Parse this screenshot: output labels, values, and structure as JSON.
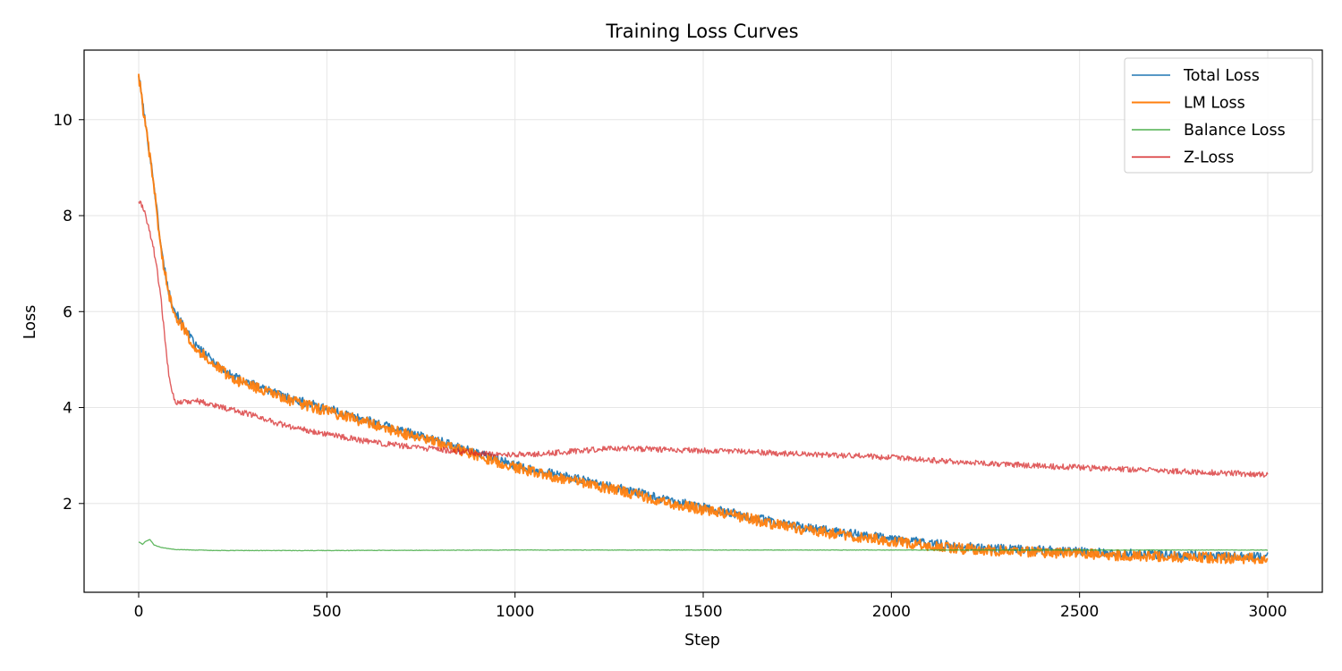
{
  "chart_data": {
    "type": "line",
    "title": "Training Loss Curves",
    "xlabel": "Step",
    "ylabel": "Loss",
    "xlim": [
      -145,
      3145
    ],
    "ylim": [
      0.15,
      11.45
    ],
    "xticks": [
      0,
      500,
      1000,
      1500,
      2000,
      2500,
      3000
    ],
    "yticks": [
      2,
      4,
      6,
      8,
      10
    ],
    "grid": true,
    "legend_position": "top-right",
    "series": [
      {
        "name": "Total Loss",
        "color": "#1f77b4",
        "x": [
          0,
          20,
          40,
          60,
          80,
          100,
          150,
          200,
          250,
          300,
          400,
          500,
          600,
          700,
          800,
          900,
          1000,
          1100,
          1200,
          1300,
          1400,
          1500,
          1600,
          1700,
          1800,
          1900,
          2000,
          2100,
          2200,
          2300,
          2400,
          2500,
          2600,
          2700,
          2800,
          2900,
          3000
        ],
        "values": [
          10.95,
          9.8,
          8.7,
          7.3,
          6.4,
          5.95,
          5.3,
          4.95,
          4.65,
          4.5,
          4.2,
          3.98,
          3.75,
          3.52,
          3.3,
          3.05,
          2.8,
          2.62,
          2.45,
          2.28,
          2.08,
          1.92,
          1.77,
          1.6,
          1.47,
          1.37,
          1.27,
          1.18,
          1.1,
          1.06,
          1.03,
          1.0,
          0.97,
          0.94,
          0.92,
          0.9,
          0.89
        ],
        "noise": 0.09,
        "linewidth": 1.6
      },
      {
        "name": "LM Loss",
        "color": "#ff7f0e",
        "x": [
          0,
          20,
          40,
          60,
          80,
          100,
          150,
          200,
          250,
          300,
          400,
          500,
          600,
          700,
          800,
          900,
          1000,
          1100,
          1200,
          1300,
          1400,
          1500,
          1600,
          1700,
          1800,
          1900,
          2000,
          2100,
          2200,
          2300,
          2400,
          2500,
          2600,
          2700,
          2800,
          2900,
          3000
        ],
        "values": [
          10.92,
          9.75,
          8.65,
          7.25,
          6.35,
          5.9,
          5.25,
          4.9,
          4.6,
          4.45,
          4.15,
          3.93,
          3.7,
          3.47,
          3.25,
          3.0,
          2.75,
          2.57,
          2.4,
          2.23,
          2.03,
          1.87,
          1.72,
          1.55,
          1.42,
          1.32,
          1.22,
          1.13,
          1.05,
          1.01,
          0.98,
          0.95,
          0.92,
          0.9,
          0.88,
          0.86,
          0.85
        ],
        "noise": 0.11,
        "linewidth": 2.0
      },
      {
        "name": "Balance Loss",
        "color": "#2ca02c",
        "x": [
          0,
          10,
          20,
          30,
          40,
          60,
          80,
          100,
          200,
          500,
          1000,
          1500,
          2000,
          2500,
          3000
        ],
        "values": [
          1.2,
          1.15,
          1.22,
          1.25,
          1.14,
          1.08,
          1.06,
          1.04,
          1.02,
          1.02,
          1.03,
          1.03,
          1.03,
          1.03,
          1.03
        ],
        "noise": 0.005,
        "linewidth": 1.3
      },
      {
        "name": "Z-Loss",
        "color": "#d62728",
        "x": [
          0,
          10,
          20,
          30,
          40,
          50,
          60,
          70,
          80,
          90,
          100,
          150,
          200,
          300,
          400,
          500,
          600,
          700,
          800,
          900,
          1000,
          1100,
          1200,
          1300,
          1400,
          1500,
          1600,
          1700,
          1800,
          1900,
          2000,
          2100,
          2200,
          2300,
          2400,
          2500,
          2600,
          2700,
          2800,
          2900,
          3000
        ],
        "values": [
          8.3,
          8.2,
          7.95,
          7.65,
          7.3,
          6.8,
          6.2,
          5.4,
          4.7,
          4.3,
          4.1,
          4.15,
          4.05,
          3.85,
          3.6,
          3.45,
          3.3,
          3.2,
          3.12,
          3.05,
          3.02,
          3.05,
          3.12,
          3.15,
          3.12,
          3.1,
          3.08,
          3.05,
          3.02,
          3.0,
          2.96,
          2.9,
          2.86,
          2.82,
          2.78,
          2.75,
          2.72,
          2.69,
          2.66,
          2.63,
          2.6
        ],
        "noise": 0.06,
        "linewidth": 1.4
      }
    ]
  }
}
